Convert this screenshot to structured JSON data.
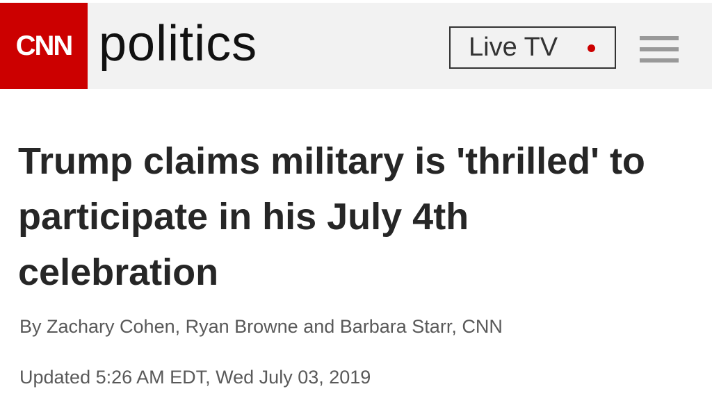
{
  "header": {
    "logo": "CNN",
    "section": "politics",
    "live_tv": "Live TV"
  },
  "article": {
    "headline": "Trump claims military is 'thrilled' to participate in his July 4th celebration",
    "byline": "By Zachary Cohen, Ryan Browne and Barbara Starr, CNN",
    "updated": "Updated 5:26 AM EDT, Wed July 03, 2019"
  }
}
